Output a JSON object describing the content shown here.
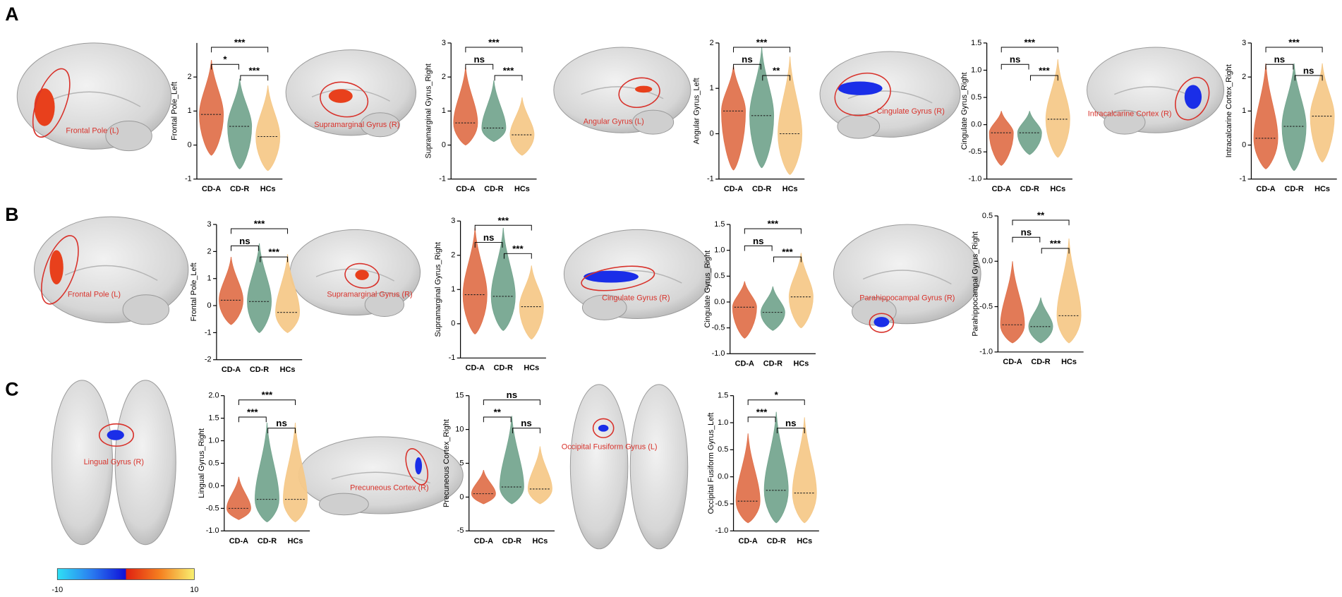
{
  "panels": [
    "A",
    "B",
    "C"
  ],
  "brain_labels": [
    "Frontal Pole (L)",
    "Supramarginal Gyrus (R)",
    "Angular Gyrus (L)",
    "Cingulate Gyrus (R)",
    "Intracalcarine Cortex (R)",
    "Frontal Pole (L)",
    "Supramarginal Gyrus (R)",
    "Cingulate Gyrus (R)",
    "Parahippocampal Gyrus (R)",
    "Lingual Gyrus (R)",
    "Precuneous Cortex (R)",
    "Occipital Fusiform Gyrus (L)"
  ],
  "colorbar": {
    "ticks": [
      -10,
      10
    ]
  },
  "chart_data": [
    {
      "type": "violin",
      "ylabel": "Frontal Pole_Left",
      "categories": [
        "CD-A",
        "CD-R",
        "HCs"
      ],
      "colors": [
        "#e0734e",
        "#76a690",
        "#f5c98a"
      ],
      "values": [
        0.9,
        0.55,
        0.25
      ],
      "mins": [
        -0.3,
        -0.7,
        -0.75
      ],
      "maxs": [
        2.5,
        1.95,
        1.75
      ],
      "ylim": [
        -1,
        3
      ],
      "yticks": [
        -1,
        0,
        1,
        2
      ],
      "significance": [
        "***",
        "*",
        "***"
      ]
    },
    {
      "type": "violin",
      "ylabel": "Supramarginal Gyrus_Right",
      "categories": [
        "CD-A",
        "CD-R",
        "HCs"
      ],
      "colors": [
        "#e0734e",
        "#76a690",
        "#f5c98a"
      ],
      "values": [
        0.65,
        0.5,
        0.3
      ],
      "mins": [
        0.0,
        0.1,
        -0.3
      ],
      "maxs": [
        2.3,
        1.9,
        1.4
      ],
      "ylim": [
        -1,
        3
      ],
      "yticks": [
        -1,
        0,
        1,
        2,
        3
      ],
      "significance": [
        "***",
        "ns",
        "***"
      ]
    },
    {
      "type": "violin",
      "ylabel": "Angular Gyrus_Left",
      "categories": [
        "CD-A",
        "CD-R",
        "HCs"
      ],
      "colors": [
        "#e0734e",
        "#76a690",
        "#f5c98a"
      ],
      "values": [
        0.5,
        0.4,
        0.0
      ],
      "mins": [
        -0.8,
        -0.75,
        -0.9
      ],
      "maxs": [
        1.5,
        1.9,
        1.7
      ],
      "ylim": [
        -1,
        2
      ],
      "yticks": [
        -1,
        0,
        1,
        2
      ],
      "significance": [
        "***",
        "ns",
        "**"
      ]
    },
    {
      "type": "violin",
      "ylabel": "Cingulate Gyrus_Right",
      "categories": [
        "CD-A",
        "CD-R",
        "HCs"
      ],
      "colors": [
        "#e0734e",
        "#76a690",
        "#f5c98a"
      ],
      "values": [
        -0.15,
        -0.15,
        0.1
      ],
      "mins": [
        -0.75,
        -0.55,
        -0.6
      ],
      "maxs": [
        0.25,
        0.25,
        1.2
      ],
      "ylim": [
        -1,
        1.5
      ],
      "yticks": [
        {
          "value": -1,
          "label": "-1.0"
        },
        -0.5,
        {
          "value": 0,
          "label": "0.0"
        },
        0.5,
        {
          "value": 1,
          "label": "1.0"
        },
        1.5
      ],
      "significance": [
        "***",
        "ns",
        "***"
      ]
    },
    {
      "type": "violin",
      "ylabel": "Intracalcarine Cortex_Right",
      "categories": [
        "CD-A",
        "CD-R",
        "HCs"
      ],
      "colors": [
        "#e0734e",
        "#76a690",
        "#f5c98a"
      ],
      "values": [
        0.2,
        0.55,
        0.85
      ],
      "mins": [
        -0.7,
        -0.75,
        -0.5
      ],
      "maxs": [
        2.4,
        2.4,
        2.4
      ],
      "ylim": [
        -1,
        3
      ],
      "yticks": [
        -1,
        0,
        1,
        2,
        3
      ],
      "significance": [
        "***",
        "ns",
        "ns"
      ]
    },
    {
      "type": "violin",
      "ylabel": "Frontal Pole_Left",
      "categories": [
        "CD-A",
        "CD-R",
        "HCs"
      ],
      "colors": [
        "#e0734e",
        "#76a690",
        "#f5c98a"
      ],
      "values": [
        0.2,
        0.15,
        -0.25
      ],
      "mins": [
        -0.7,
        -1.0,
        -1.0
      ],
      "maxs": [
        1.8,
        2.3,
        1.9
      ],
      "ylim": [
        -2,
        3
      ],
      "yticks": [
        -2,
        -1,
        0,
        1,
        2,
        3
      ],
      "significance": [
        "***",
        "ns",
        "***"
      ]
    },
    {
      "type": "violin",
      "ylabel": "Supramarginal Gyrus_Right",
      "categories": [
        "CD-A",
        "CD-R",
        "HCs"
      ],
      "colors": [
        "#e0734e",
        "#76a690",
        "#f5c98a"
      ],
      "values": [
        0.85,
        0.8,
        0.5
      ],
      "mins": [
        -0.3,
        -0.2,
        -0.45
      ],
      "maxs": [
        2.8,
        2.8,
        1.7
      ],
      "ylim": [
        -1,
        3
      ],
      "yticks": [
        -1,
        0,
        1,
        2,
        3
      ],
      "significance": [
        "***",
        "ns",
        "***"
      ]
    },
    {
      "type": "violin",
      "ylabel": "Cingulate Gyrus_Right",
      "categories": [
        "CD-A",
        "CD-R",
        "HCs"
      ],
      "colors": [
        "#e0734e",
        "#76a690",
        "#f5c98a"
      ],
      "values": [
        -0.1,
        -0.2,
        0.1
      ],
      "mins": [
        -0.7,
        -0.55,
        -0.5
      ],
      "maxs": [
        0.4,
        0.3,
        0.95
      ],
      "ylim": [
        -1,
        1.5
      ],
      "yticks": [
        {
          "value": -1,
          "label": "-1.0"
        },
        -0.5,
        {
          "value": 0,
          "label": "0.0"
        },
        0.5,
        {
          "value": 1,
          "label": "1.0"
        },
        1.5
      ],
      "significance": [
        "***",
        "ns",
        "***"
      ]
    },
    {
      "type": "violin",
      "ylabel": "Parahippocampal Gyrus_Right",
      "categories": [
        "CD-A",
        "CD-R",
        "HCs"
      ],
      "colors": [
        "#e0734e",
        "#76a690",
        "#f5c98a"
      ],
      "values": [
        -0.7,
        -0.72,
        -0.6
      ],
      "mins": [
        -0.9,
        -0.9,
        -0.9
      ],
      "maxs": [
        0.0,
        -0.4,
        0.25
      ],
      "ylim": [
        -1,
        0.5
      ],
      "yticks": [
        {
          "value": -1,
          "label": "-1.0"
        },
        -0.5,
        {
          "value": 0,
          "label": "0.0"
        },
        0.5
      ],
      "significance": [
        "**",
        "ns",
        "***"
      ]
    },
    {
      "type": "violin",
      "ylabel": "Lingual Gyrus_Right",
      "categories": [
        "CD-A",
        "CD-R",
        "HCs"
      ],
      "colors": [
        "#e0734e",
        "#76a690",
        "#f5c98a"
      ],
      "values": [
        -0.5,
        -0.3,
        -0.3
      ],
      "mins": [
        -0.75,
        -0.8,
        -0.8
      ],
      "maxs": [
        0.2,
        1.4,
        1.4
      ],
      "ylim": [
        -1,
        2
      ],
      "yticks": [
        {
          "value": -1,
          "label": "-1.0"
        },
        -0.5,
        {
          "value": 0,
          "label": "0.0"
        },
        0.5,
        {
          "value": 1,
          "label": "1.0"
        },
        1.5,
        {
          "value": 2,
          "label": "2.0"
        }
      ],
      "significance": [
        "***",
        "***",
        "ns"
      ]
    },
    {
      "type": "violin",
      "ylabel": "Precuneous Cortex_Right",
      "categories": [
        "CD-A",
        "CD-R",
        "HCs"
      ],
      "colors": [
        "#e0734e",
        "#76a690",
        "#f5c98a"
      ],
      "values": [
        0.5,
        1.5,
        1.2
      ],
      "mins": [
        -1,
        -1,
        -1
      ],
      "maxs": [
        4,
        12,
        7.5
      ],
      "ylim": [
        -5,
        15
      ],
      "yticks": [
        -5,
        0,
        5,
        10,
        15
      ],
      "significance": [
        "ns",
        "**",
        "ns"
      ]
    },
    {
      "type": "violin",
      "ylabel": "Occipital Fusiform Gyrus_Left",
      "categories": [
        "CD-A",
        "CD-R",
        "HCs"
      ],
      "colors": [
        "#e0734e",
        "#76a690",
        "#f5c98a"
      ],
      "values": [
        -0.45,
        -0.25,
        -0.3
      ],
      "mins": [
        -0.85,
        -0.85,
        -0.85
      ],
      "maxs": [
        0.8,
        1.2,
        1.1
      ],
      "ylim": [
        -1,
        1.5
      ],
      "yticks": [
        {
          "value": -1,
          "label": "-1.0"
        },
        -0.5,
        {
          "value": 0,
          "label": "0.0"
        },
        0.5,
        {
          "value": 1,
          "label": "1.0"
        },
        1.5
      ],
      "significance": [
        "*",
        "***",
        "ns"
      ]
    }
  ]
}
